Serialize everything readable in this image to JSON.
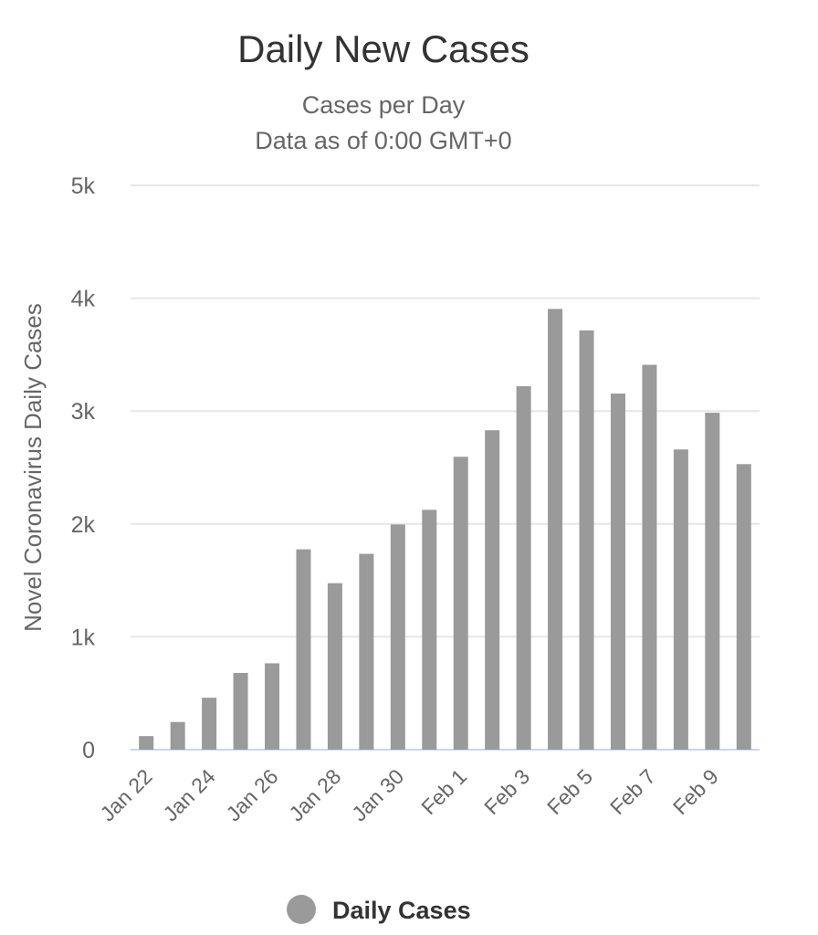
{
  "chart_data": {
    "type": "bar",
    "title": "Daily New Cases",
    "subtitle": "Cases per Day",
    "subtitle2": "Data as of 0:00 GMT+0",
    "xlabel": "",
    "ylabel": "Novel Coronavirus Daily Cases",
    "ylim": [
      0,
      5000
    ],
    "yticks": [
      0,
      1000,
      2000,
      3000,
      4000,
      5000
    ],
    "ytick_labels": [
      "0",
      "1k",
      "2k",
      "3k",
      "4k",
      "5k"
    ],
    "categories": [
      "Jan 22",
      "Jan 23",
      "Jan 24",
      "Jan 25",
      "Jan 26",
      "Jan 27",
      "Jan 28",
      "Jan 29",
      "Jan 30",
      "Jan 31",
      "Feb 1",
      "Feb 2",
      "Feb 3",
      "Feb 4",
      "Feb 5",
      "Feb 6",
      "Feb 7",
      "Feb 8",
      "Feb 9",
      "Feb 10"
    ],
    "visible_tick_labels": [
      "Jan 22",
      "Jan 24",
      "Jan 26",
      "Jan 28",
      "Jan 30",
      "Feb 1",
      "Feb 3",
      "Feb 5",
      "Feb 7",
      "Feb 9"
    ],
    "series": [
      {
        "name": "Daily Cases",
        "color": "#9a9a9a",
        "values": [
          120,
          245,
          460,
          680,
          765,
          1775,
          1475,
          1735,
          1995,
          2125,
          2595,
          2830,
          3220,
          3905,
          3715,
          3155,
          3410,
          2660,
          2985,
          2530
        ]
      }
    ],
    "legend": {
      "placement": "bottom-center",
      "label": "Daily Cases"
    },
    "grid": true,
    "colors": {
      "grid": "#e6e6e6",
      "baseline": "#ccd6eb",
      "bar": "#9a9a9a",
      "title": "#333333",
      "text": "#666666"
    }
  }
}
